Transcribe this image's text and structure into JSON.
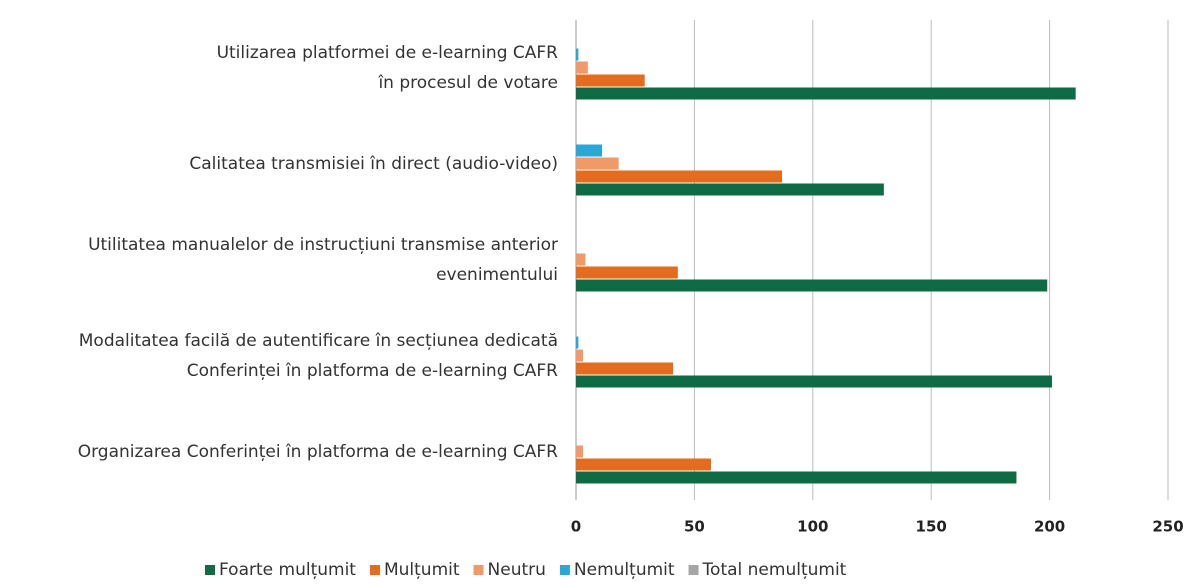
{
  "chart_data": {
    "type": "barh",
    "categories": [
      [
        "Utilizarea platformei de e-learning CAFR",
        "în procesul de votare"
      ],
      [
        "Calitatea transmisiei în direct (audio-video)"
      ],
      [
        "Utilitatea manualelor de instrucțiuni transmise anterior",
        "evenimentului"
      ],
      [
        "Modalitatea facilă de autentificare în secțiunea dedicată",
        "Conferinței în platforma de e-learning CAFR"
      ],
      [
        "Organizarea Conferinței în platforma de e-learning CAFR"
      ]
    ],
    "series": [
      {
        "name": "Foarte mulțumit",
        "color": "#0f6b45",
        "values": [
          211,
          130,
          199,
          201,
          186
        ]
      },
      {
        "name": "Mulțumit",
        "color": "#e46c1f",
        "values": [
          29,
          87,
          43,
          41,
          57
        ]
      },
      {
        "name": "Neutru",
        "color": "#ef9a68",
        "values": [
          5,
          18,
          4,
          3,
          3
        ]
      },
      {
        "name": "Nemulțumit",
        "color": "#2aa7d5",
        "values": [
          1,
          11,
          0,
          1,
          0
        ]
      },
      {
        "name": "Total nemulțumit",
        "color": "#a6a6a6",
        "values": [
          0,
          0,
          0,
          0,
          0
        ]
      }
    ],
    "xlim": [
      0,
      250
    ],
    "xticks": [
      0,
      50,
      100,
      150,
      200,
      250
    ],
    "grid": true,
    "legend": "bottom"
  }
}
